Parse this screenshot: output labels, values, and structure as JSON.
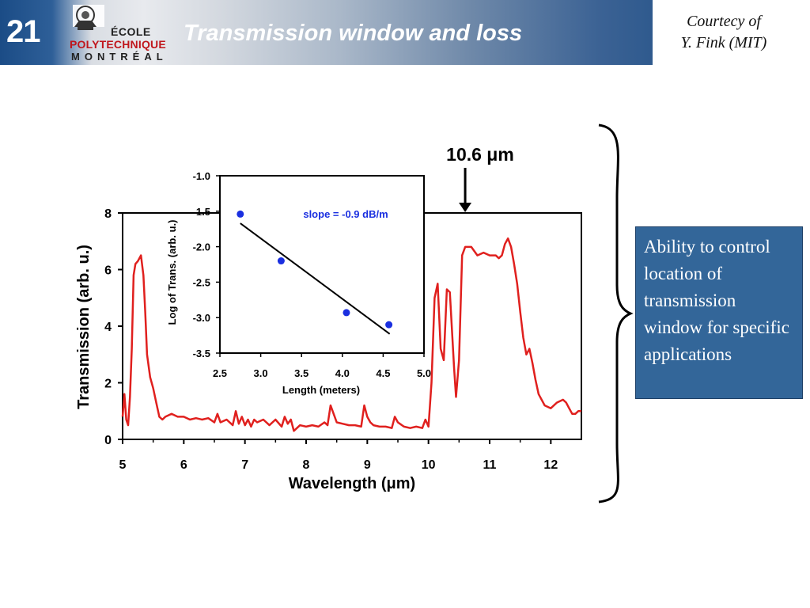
{
  "header": {
    "slide_number": "21",
    "title": "Transmission window and loss",
    "logo": {
      "line1": "ÉCOLE",
      "line2": "POLYTECHNIQUE",
      "line3": "MONTRÉAL"
    }
  },
  "courtesy": {
    "line1": "Courtecy of",
    "line2": "Y. Fink (MIT)"
  },
  "callout": {
    "text": "Ability to control location of transmission window for specific applications"
  },
  "annotation": {
    "label": "10.6 μm"
  },
  "colors": {
    "header_blue": "#2f5a8e",
    "callout_blue": "#336699",
    "curve_red": "#e0201e",
    "point_blue": "#1a2fe0"
  },
  "chart_data": [
    {
      "type": "line",
      "xlabel": "Wavelength (μm)",
      "ylabel": "Transmission (arb. u.)",
      "xlim": [
        5,
        12.5
      ],
      "ylim": [
        0,
        8
      ],
      "xticks": [
        "5",
        "6",
        "7",
        "8",
        "9",
        "10",
        "11",
        "12"
      ],
      "yticks": [
        "0",
        "2",
        "4",
        "6",
        "8"
      ],
      "marker_x": 10.6,
      "series": [
        {
          "x": [
            5.0,
            5.03,
            5.06,
            5.09,
            5.12,
            5.15,
            5.18,
            5.21,
            5.25,
            5.3,
            5.34,
            5.37,
            5.4,
            5.45,
            5.5,
            5.55,
            5.6,
            5.65,
            5.7,
            5.8,
            5.9,
            6.0,
            6.1,
            6.2,
            6.3,
            6.4,
            6.5,
            6.55,
            6.6,
            6.7,
            6.8,
            6.85,
            6.9,
            6.95,
            7.0,
            7.05,
            7.1,
            7.15,
            7.2,
            7.3,
            7.4,
            7.5,
            7.6,
            7.65,
            7.7,
            7.75,
            7.8,
            7.9,
            8.0,
            8.1,
            8.2,
            8.3,
            8.35,
            8.4,
            8.45,
            8.5,
            8.6,
            8.7,
            8.8,
            8.9,
            8.95,
            9.0,
            9.05,
            9.1,
            9.2,
            9.3,
            9.4,
            9.45,
            9.5,
            9.6,
            9.7,
            9.8,
            9.9,
            9.95,
            10.0,
            10.05,
            10.1,
            10.15,
            10.2,
            10.25,
            10.3,
            10.35,
            10.38,
            10.42,
            10.45,
            10.5,
            10.55,
            10.6,
            10.7,
            10.8,
            10.9,
            11.0,
            11.1,
            11.15,
            11.2,
            11.25,
            11.3,
            11.35,
            11.4,
            11.45,
            11.5,
            11.55,
            11.6,
            11.65,
            11.7,
            11.75,
            11.8,
            11.9,
            12.0,
            12.1,
            12.2,
            12.25,
            12.3,
            12.35,
            12.4,
            12.45,
            12.5
          ],
          "y": [
            0.8,
            1.6,
            0.7,
            0.5,
            1.5,
            3.2,
            5.8,
            6.2,
            6.3,
            6.5,
            5.8,
            4.5,
            3.0,
            2.2,
            1.8,
            1.3,
            0.8,
            0.7,
            0.8,
            0.9,
            0.8,
            0.8,
            0.7,
            0.75,
            0.7,
            0.75,
            0.6,
            0.9,
            0.6,
            0.7,
            0.5,
            1.0,
            0.55,
            0.8,
            0.5,
            0.7,
            0.45,
            0.7,
            0.6,
            0.7,
            0.5,
            0.7,
            0.45,
            0.8,
            0.55,
            0.7,
            0.3,
            0.5,
            0.45,
            0.5,
            0.45,
            0.6,
            0.5,
            1.2,
            0.9,
            0.6,
            0.55,
            0.5,
            0.5,
            0.45,
            1.2,
            0.8,
            0.6,
            0.5,
            0.45,
            0.45,
            0.4,
            0.8,
            0.6,
            0.45,
            0.4,
            0.45,
            0.4,
            0.7,
            0.45,
            2.0,
            5.0,
            5.5,
            3.2,
            2.8,
            5.3,
            5.2,
            4.0,
            2.5,
            1.5,
            2.8,
            6.5,
            6.8,
            6.8,
            6.5,
            6.6,
            6.5,
            6.5,
            6.4,
            6.5,
            6.9,
            7.1,
            6.8,
            6.2,
            5.5,
            4.5,
            3.6,
            3.0,
            3.2,
            2.7,
            2.1,
            1.6,
            1.2,
            1.1,
            1.3,
            1.4,
            1.3,
            1.1,
            0.9,
            0.9,
            1.0,
            1.0
          ],
          "color": "#e0201e"
        }
      ]
    },
    {
      "type": "scatter",
      "xlabel": "Length (meters)",
      "ylabel": "Log of Trans. (arb. u.)",
      "xlim": [
        2.5,
        5.0
      ],
      "ylim": [
        -3.5,
        -1.0
      ],
      "xticks": [
        "2.5",
        "3.0",
        "3.5",
        "4.0",
        "4.5",
        "5.0"
      ],
      "yticks": [
        "-1.0",
        "-1.5",
        "-2.0",
        "-2.5",
        "-3.0",
        "-3.5"
      ],
      "annotation": "slope = -0.9 dB/m",
      "points": {
        "x": [
          2.75,
          3.25,
          4.05,
          4.57
        ],
        "y": [
          -1.54,
          -2.2,
          -2.93,
          -3.1
        ]
      },
      "fit_line": {
        "x": [
          2.75,
          4.58
        ],
        "y": [
          -1.67,
          -3.23
        ]
      }
    }
  ]
}
